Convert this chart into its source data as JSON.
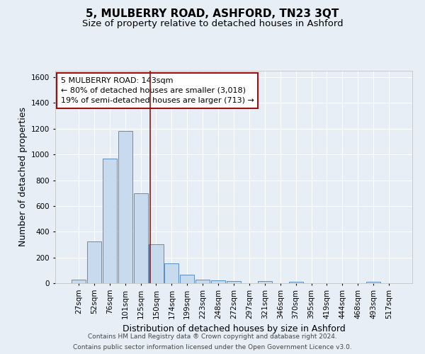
{
  "title1": "5, MULBERRY ROAD, ASHFORD, TN23 3QT",
  "title2": "Size of property relative to detached houses in Ashford",
  "xlabel": "Distribution of detached houses by size in Ashford",
  "ylabel": "Number of detached properties",
  "footer1": "Contains HM Land Registry data ® Crown copyright and database right 2024.",
  "footer2": "Contains public sector information licensed under the Open Government Licence v3.0.",
  "annotation_line1": "5 MULBERRY ROAD: 143sqm",
  "annotation_line2": "← 80% of detached houses are smaller (3,018)",
  "annotation_line3": "19% of semi-detached houses are larger (713) →",
  "bar_labels": [
    "27sqm",
    "52sqm",
    "76sqm",
    "101sqm",
    "125sqm",
    "150sqm",
    "174sqm",
    "199sqm",
    "223sqm",
    "248sqm",
    "272sqm",
    "297sqm",
    "321sqm",
    "346sqm",
    "370sqm",
    "395sqm",
    "419sqm",
    "444sqm",
    "468sqm",
    "493sqm",
    "517sqm"
  ],
  "bar_values": [
    25,
    325,
    970,
    1180,
    700,
    300,
    155,
    65,
    30,
    20,
    15,
    0,
    15,
    0,
    10,
    0,
    0,
    0,
    0,
    10,
    0
  ],
  "bar_color": "#c8daee",
  "bar_edge_color": "#5b8ec4",
  "vline_x_index": 4.62,
  "vline_color": "#8b1a1a",
  "ylim": [
    0,
    1650
  ],
  "yticks": [
    0,
    200,
    400,
    600,
    800,
    1000,
    1200,
    1400,
    1600
  ],
  "bg_color": "#e8eef6",
  "plot_bg_color": "#e8eef6",
  "grid_color": "#ffffff",
  "annotation_box_color": "#ffffff",
  "annotation_box_edge": "#9b1111",
  "title1_fontsize": 11,
  "title2_fontsize": 9.5,
  "axis_label_fontsize": 9,
  "tick_fontsize": 7.5,
  "annotation_fontsize": 8,
  "footer_fontsize": 6.5
}
